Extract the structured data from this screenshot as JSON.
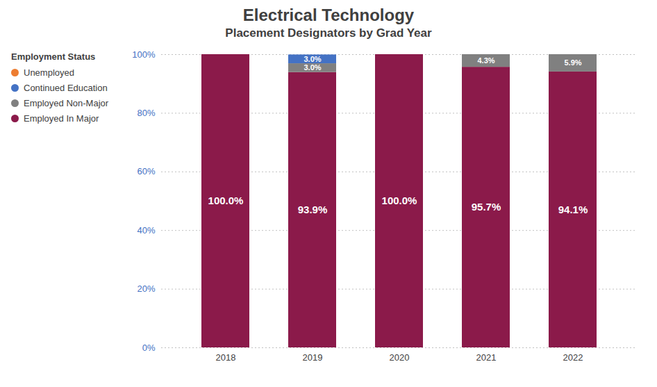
{
  "chart_data": {
    "type": "bar",
    "title": "Electrical Technology",
    "subtitle": "Placement Designators by Grad Year",
    "legend_title": "Employment Status",
    "categories": [
      "2018",
      "2019",
      "2020",
      "2021",
      "2022"
    ],
    "series": [
      {
        "name": "Employed In Major",
        "color": "#8B1A4A",
        "values": [
          100.0,
          93.9,
          100.0,
          95.7,
          94.1
        ],
        "value_labels": [
          "100.0%",
          "93.9%",
          "100.0%",
          "95.7%",
          "94.1%"
        ]
      },
      {
        "name": "Employed Non-Major",
        "color": "#808080",
        "values": [
          0.0,
          3.0,
          0.0,
          4.3,
          5.9
        ],
        "value_labels": [
          null,
          "3.0%",
          null,
          "4.3%",
          "5.9%"
        ]
      },
      {
        "name": "Continued Education",
        "color": "#4472C4",
        "values": [
          0.0,
          3.0,
          0.0,
          0.0,
          0.0
        ],
        "value_labels": [
          null,
          "3.0%",
          null,
          null,
          null
        ]
      },
      {
        "name": "Unemployed",
        "color": "#ED7D31",
        "values": [
          0.0,
          0.0,
          0.0,
          0.0,
          0.0
        ],
        "value_labels": [
          null,
          null,
          null,
          null,
          null
        ]
      }
    ],
    "stacked": true,
    "data_labels": true,
    "ylim": [
      0,
      100
    ],
    "yticks": [
      {
        "value": 0,
        "label": "0%"
      },
      {
        "value": 20,
        "label": "20%"
      },
      {
        "value": 40,
        "label": "40%"
      },
      {
        "value": 60,
        "label": "60%"
      },
      {
        "value": 80,
        "label": "80%"
      },
      {
        "value": 100,
        "label": "100%"
      }
    ],
    "grid": true,
    "legend": "upper left"
  }
}
